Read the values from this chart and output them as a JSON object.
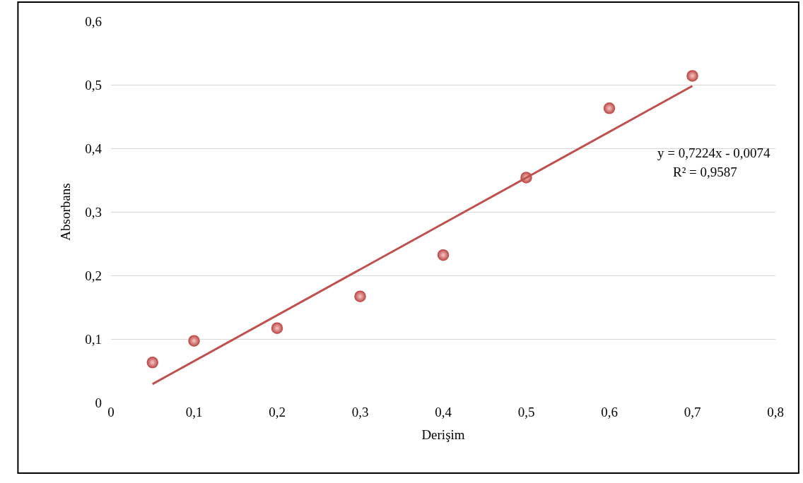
{
  "chart_data": {
    "type": "scatter",
    "xlabel": "Derişim",
    "ylabel": "Absorbans",
    "series": [
      {
        "color": "#c0504d",
        "marker": "circle",
        "x": [
          0.05,
          0.1,
          0.2,
          0.3,
          0.4,
          0.5,
          0.6,
          0.7
        ],
        "values": [
          0.063,
          0.097,
          0.117,
          0.167,
          0.232,
          0.354,
          0.463,
          0.514
        ]
      },
      {
        "type": "line",
        "color": "#c0504d",
        "marker": "none",
        "line_style": "solid",
        "x": [
          0.05,
          0.7
        ],
        "values": [
          0.029,
          0.498
        ]
      }
    ],
    "annotations": [
      "y = 0,7224x - 0,0074",
      "R² = 0,9587"
    ],
    "xlim": [
      0,
      0.8
    ],
    "xticks": [
      0,
      {
        "value": 0.1,
        "label": "0,1"
      },
      {
        "value": 0.2,
        "label": "0,2"
      },
      {
        "value": 0.3,
        "label": "0,3"
      },
      {
        "value": 0.4,
        "label": "0,4"
      },
      {
        "value": 0.5,
        "label": "0,5"
      },
      {
        "value": 0.6,
        "label": "0,6"
      },
      {
        "value": 0.7,
        "label": "0,7"
      },
      {
        "value": 0.8,
        "label": "0,8"
      }
    ],
    "ylim": [
      0,
      0.6
    ],
    "yticks": [
      0,
      {
        "value": 0.1,
        "label": "0,1"
      },
      {
        "value": 0.2,
        "label": "0,2"
      },
      {
        "value": 0.3,
        "label": "0,3"
      },
      {
        "value": 0.4,
        "label": "0,4"
      },
      {
        "value": 0.5,
        "label": "0,5"
      },
      {
        "value": 0.6,
        "label": "0,6"
      }
    ],
    "grid": "y"
  }
}
